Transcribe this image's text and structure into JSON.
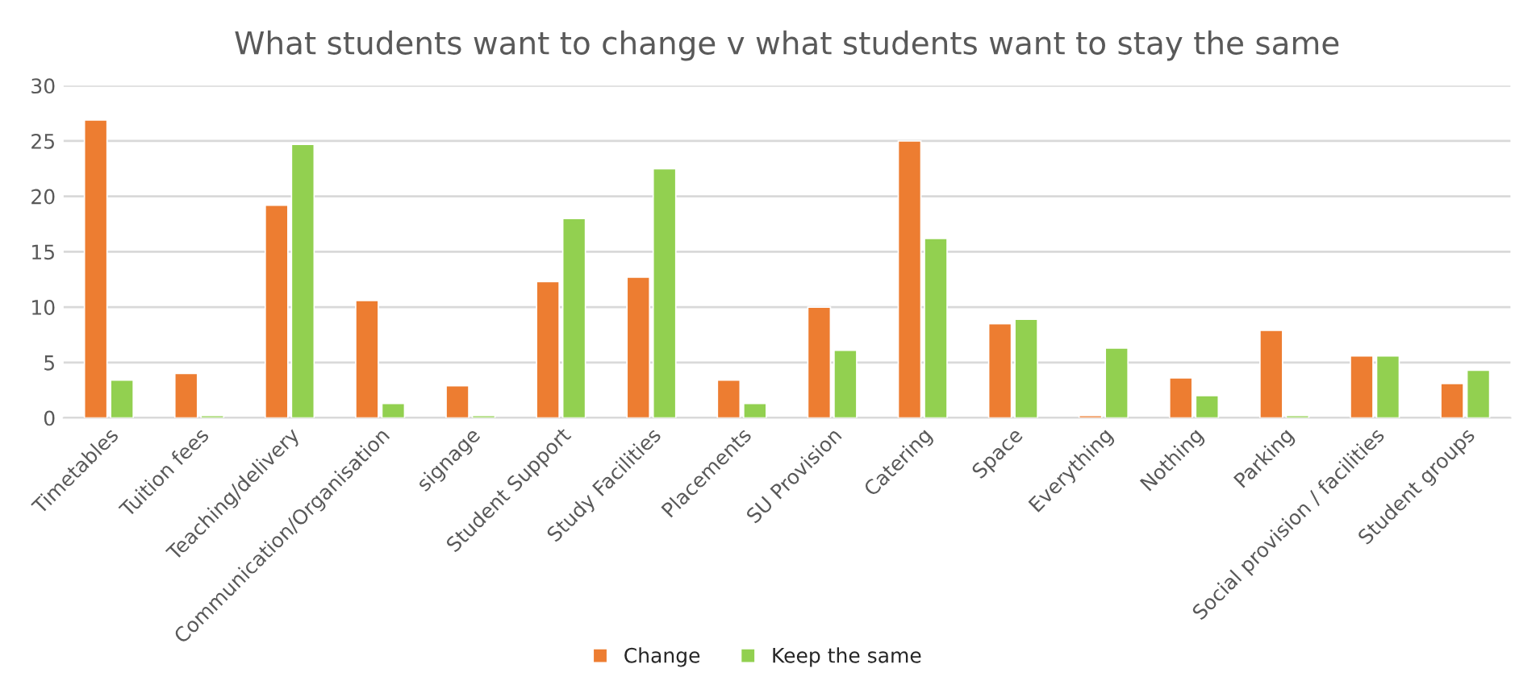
{
  "chart_data": {
    "type": "bar",
    "title": "What students want to change v what students want to stay the same",
    "categories": [
      "Timetables",
      "Tuition fees",
      "Teaching/delivery",
      "Communication/Organisation",
      "signage",
      "Student Support",
      "Study Facilities",
      "Placements",
      "SU Provision",
      "Catering",
      "Space",
      "Everything",
      "Nothing",
      "Parking",
      "Social provision / facilities",
      "Student groups"
    ],
    "series": [
      {
        "name": "Change",
        "color": "#ed7d31",
        "values": [
          26.9,
          4.0,
          19.2,
          10.6,
          2.9,
          12.3,
          12.7,
          3.4,
          10.0,
          25.0,
          8.5,
          0.2,
          3.6,
          7.9,
          5.6,
          3.1
        ]
      },
      {
        "name": "Keep the same",
        "color": "#92d050",
        "values": [
          3.4,
          0.2,
          24.7,
          1.3,
          0.2,
          18.0,
          22.5,
          1.3,
          6.1,
          16.2,
          8.9,
          6.3,
          2.0,
          0.2,
          5.6,
          4.3
        ]
      }
    ],
    "ylim": [
      0,
      30
    ],
    "yticks": [
      0,
      5,
      10,
      15,
      20,
      25,
      30
    ],
    "grid": "y",
    "legend": "bottom"
  }
}
